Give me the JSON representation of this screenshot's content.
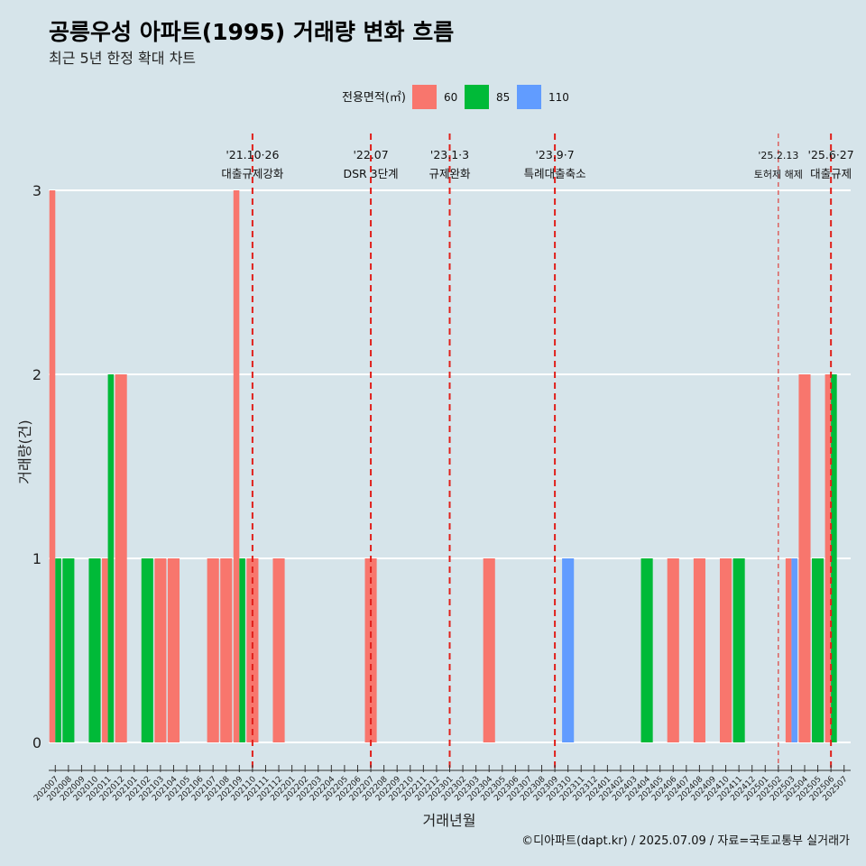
{
  "chart_data": {
    "type": "bar",
    "title": "공릉우성 아파트(1995) 거래량 변화 흐름",
    "subtitle": "최근 5년 한정 확대 차트",
    "xlabel": "거래년월",
    "ylabel": "거래량(건)",
    "ylim": [
      0,
      3
    ],
    "y_ticks": [
      "0",
      "1",
      "2",
      "3"
    ],
    "grid": true,
    "legend": {
      "title": "전용면적(㎡)",
      "position": "top",
      "items": [
        {
          "label": "60",
          "color": "#F8766D"
        },
        {
          "label": "85",
          "color": "#00BA38"
        },
        {
          "label": "110",
          "color": "#619CFF"
        }
      ]
    },
    "categories": [
      "202007",
      "202008",
      "202009",
      "202010",
      "202011",
      "202012",
      "202101",
      "202102",
      "202103",
      "202104",
      "202105",
      "202106",
      "202107",
      "202108",
      "202109",
      "202110",
      "202111",
      "202112",
      "202201",
      "202202",
      "202203",
      "202204",
      "202205",
      "202206",
      "202207",
      "202208",
      "202209",
      "202210",
      "202211",
      "202212",
      "202301",
      "202302",
      "202303",
      "202304",
      "202305",
      "202306",
      "202307",
      "202308",
      "202309",
      "202310",
      "202311",
      "202312",
      "202401",
      "202402",
      "202403",
      "202404",
      "202405",
      "202406",
      "202407",
      "202408",
      "202409",
      "202410",
      "202411",
      "202412",
      "202501",
      "202502",
      "202503",
      "202504",
      "202505",
      "202506",
      "202507"
    ],
    "bars": [
      {
        "month": "202007",
        "area": "60",
        "value": 3
      },
      {
        "month": "202007",
        "area": "85",
        "value": 1
      },
      {
        "month": "202008",
        "area": "85",
        "value": 1
      },
      {
        "month": "202010",
        "area": "85",
        "value": 1
      },
      {
        "month": "202011",
        "area": "60",
        "value": 1
      },
      {
        "month": "202011",
        "area": "85",
        "value": 2
      },
      {
        "month": "202012",
        "area": "60",
        "value": 2
      },
      {
        "month": "202102",
        "area": "85",
        "value": 1
      },
      {
        "month": "202103",
        "area": "60",
        "value": 1
      },
      {
        "month": "202104",
        "area": "60",
        "value": 1
      },
      {
        "month": "202107",
        "area": "60",
        "value": 1
      },
      {
        "month": "202108",
        "area": "60",
        "value": 1
      },
      {
        "month": "202109",
        "area": "60",
        "value": 3
      },
      {
        "month": "202109",
        "area": "85",
        "value": 1
      },
      {
        "month": "202110",
        "area": "60",
        "value": 1
      },
      {
        "month": "202112",
        "area": "60",
        "value": 1
      },
      {
        "month": "202207",
        "area": "60",
        "value": 1
      },
      {
        "month": "202304",
        "area": "60",
        "value": 1
      },
      {
        "month": "202310",
        "area": "110",
        "value": 1
      },
      {
        "month": "202404",
        "area": "85",
        "value": 1
      },
      {
        "month": "202406",
        "area": "60",
        "value": 1
      },
      {
        "month": "202408",
        "area": "60",
        "value": 1
      },
      {
        "month": "202410",
        "area": "60",
        "value": 1
      },
      {
        "month": "202411",
        "area": "85",
        "value": 1
      },
      {
        "month": "202503",
        "area": "60",
        "value": 1
      },
      {
        "month": "202503",
        "area": "110",
        "value": 1
      },
      {
        "month": "202504",
        "area": "60",
        "value": 2
      },
      {
        "month": "202505",
        "area": "85",
        "value": 1
      },
      {
        "month": "202506",
        "area": "60",
        "value": 2
      },
      {
        "month": "202506",
        "area": "85",
        "value": 2
      }
    ],
    "annotations": [
      {
        "month": "202110",
        "date": "'21.10·26",
        "label": "대출규제강화",
        "style": "dashed"
      },
      {
        "month": "202207",
        "date": "'22.07",
        "label": "DSR 3단계",
        "style": "dashed"
      },
      {
        "month": "202301",
        "date": "'23.1·3",
        "label": "규제완화",
        "style": "dashed"
      },
      {
        "month": "202309",
        "date": "'23.9·7",
        "label": "특례대출축소",
        "style": "dashed"
      },
      {
        "month": "202502",
        "date": "'25.2.13",
        "label": "토허제 해제",
        "style": "thin-dashed"
      },
      {
        "month": "202506",
        "date": "'25.6·27",
        "label": "대출규제",
        "style": "dashed"
      }
    ],
    "colors": {
      "line": "#e0201b",
      "grid": "#ffffff",
      "background": "#d6e4ea"
    }
  },
  "caption": "©디아파트(dapt.kr) / 2025.07.09 / 자료=국토교통부 실거래가"
}
